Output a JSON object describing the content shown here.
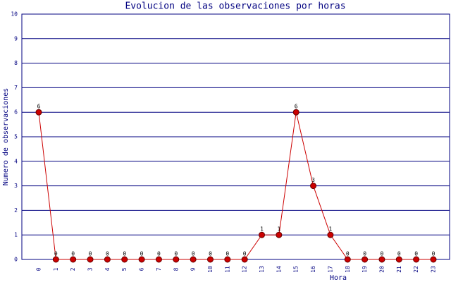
{
  "chart_data": {
    "type": "line",
    "title": "Evolucion de las observaciones por horas",
    "x_label": "Hora",
    "y_label": "Numero de observaciones",
    "categories": [
      "0",
      "1",
      "2",
      "3",
      "4",
      "5",
      "6",
      "7",
      "8",
      "9",
      "10",
      "11",
      "12",
      "13",
      "14",
      "15",
      "16",
      "17",
      "18",
      "19",
      "20",
      "21",
      "22",
      "23"
    ],
    "series": [
      {
        "name": "observaciones",
        "color": "#cc0000",
        "values": [
          6,
          0,
          0,
          0,
          0,
          0,
          0,
          0,
          0,
          0,
          0,
          0,
          0,
          1,
          1,
          6,
          3,
          1,
          0,
          0,
          0,
          0,
          0,
          0
        ]
      }
    ],
    "ylim": [
      0,
      10
    ],
    "yticks": [
      0,
      1,
      2,
      3,
      4,
      5,
      6,
      7,
      8,
      9,
      10
    ],
    "grid": true
  }
}
